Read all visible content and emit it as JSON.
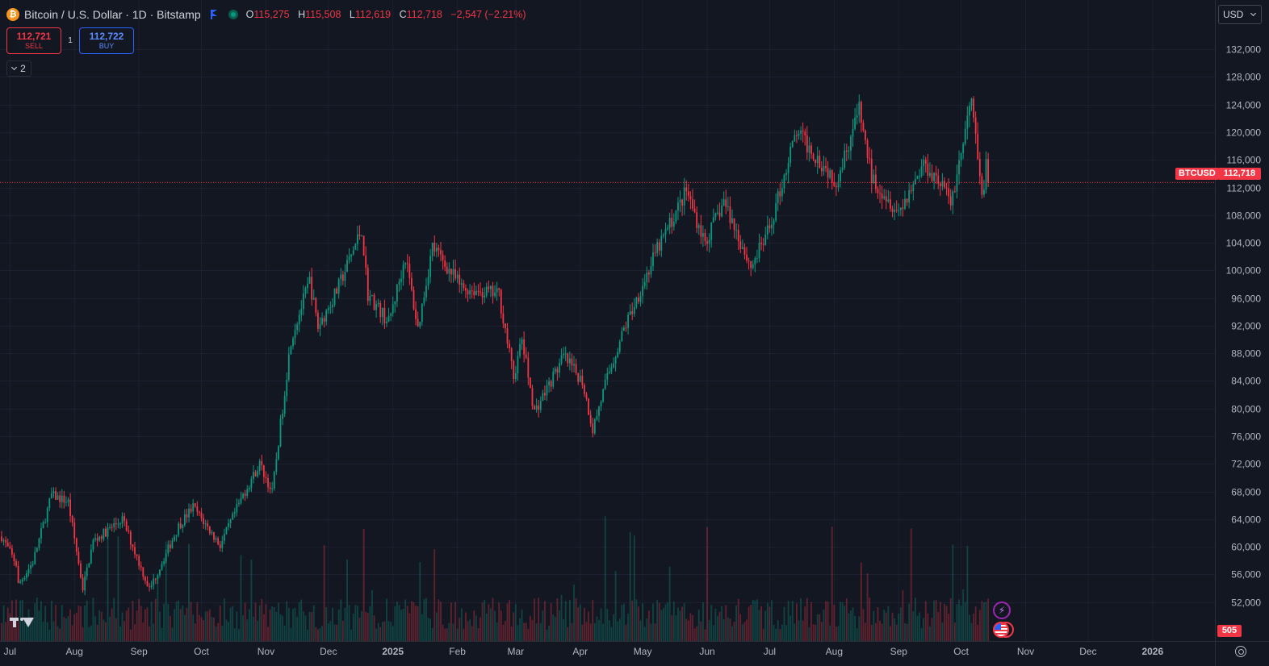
{
  "header": {
    "logo_glyph": "₿",
    "symbol_title": "Bitcoin / U.S. Dollar · 1D · Bitstamp",
    "ohlc": [
      {
        "key": "O",
        "value": "115,275"
      },
      {
        "key": "H",
        "value": "115,508"
      },
      {
        "key": "L",
        "value": "112,619"
      },
      {
        "key": "C",
        "value": "112,718"
      }
    ],
    "change": "−2,547 (−2.21%)"
  },
  "trade": {
    "sell_price": "112,721",
    "sell_label": "SELL",
    "spread": "1",
    "buy_price": "112,722",
    "buy_label": "BUY"
  },
  "indicators_toggle": {
    "count": "2"
  },
  "currency": {
    "label": "USD"
  },
  "tags": {
    "symbol": "BTCUSD",
    "last_price": "112,718",
    "volume": "505"
  },
  "colors": {
    "background": "#131722",
    "up": "#089981",
    "down": "#f23645",
    "grid": "#1c2030",
    "axis_text": "#b2b5be"
  },
  "chart_data": {
    "type": "candlestick",
    "interval": "1D",
    "y_axis": {
      "min": 48000,
      "max": 134000,
      "ticks": [
        52000,
        56000,
        60000,
        64000,
        68000,
        72000,
        76000,
        80000,
        84000,
        88000,
        92000,
        96000,
        100000,
        104000,
        108000,
        112000,
        116000,
        120000,
        124000,
        128000,
        132000
      ]
    },
    "x_axis": {
      "start_date": "2024-06-27",
      "end_date": "2026-01-29",
      "ticks": [
        {
          "label": "Jul",
          "date": "2024-07-01"
        },
        {
          "label": "Aug",
          "date": "2024-08-01"
        },
        {
          "label": "Sep",
          "date": "2024-09-01"
        },
        {
          "label": "Oct",
          "date": "2024-10-01"
        },
        {
          "label": "Nov",
          "date": "2024-11-01"
        },
        {
          "label": "Dec",
          "date": "2024-12-01"
        },
        {
          "label": "2025",
          "date": "2025-01-01"
        },
        {
          "label": "Feb",
          "date": "2025-02-01"
        },
        {
          "label": "Mar",
          "date": "2025-03-01"
        },
        {
          "label": "Apr",
          "date": "2025-04-01"
        },
        {
          "label": "May",
          "date": "2025-05-01"
        },
        {
          "label": "Jun",
          "date": "2025-06-01"
        },
        {
          "label": "Jul",
          "date": "2025-07-01"
        },
        {
          "label": "Aug",
          "date": "2025-08-01"
        },
        {
          "label": "Sep",
          "date": "2025-09-01"
        },
        {
          "label": "Oct",
          "date": "2025-10-01"
        },
        {
          "label": "Nov",
          "date": "2025-11-01"
        },
        {
          "label": "Dec",
          "date": "2025-12-01"
        },
        {
          "label": "2026",
          "date": "2026-01-01"
        }
      ]
    },
    "last_price": 112718,
    "close_path": [
      [
        "2024-06-27",
        61500
      ],
      [
        "2024-07-04",
        57500
      ],
      [
        "2024-07-05",
        54500
      ],
      [
        "2024-07-12",
        57800
      ],
      [
        "2024-07-21",
        67500
      ],
      [
        "2024-07-29",
        66500
      ],
      [
        "2024-08-05",
        54000
      ],
      [
        "2024-08-10",
        60800
      ],
      [
        "2024-08-24",
        64000
      ],
      [
        "2024-09-06",
        53800
      ],
      [
        "2024-09-20",
        63000
      ],
      [
        "2024-09-27",
        65800
      ],
      [
        "2024-10-10",
        60200
      ],
      [
        "2024-10-21",
        67500
      ],
      [
        "2024-10-29",
        72000
      ],
      [
        "2024-11-04",
        67800
      ],
      [
        "2024-11-13",
        90000
      ],
      [
        "2024-11-22",
        98500
      ],
      [
        "2024-11-26",
        91800
      ],
      [
        "2024-12-05",
        97000
      ],
      [
        "2024-12-17",
        106000
      ],
      [
        "2024-12-20",
        96500
      ],
      [
        "2024-12-30",
        92500
      ],
      [
        "2025-01-07",
        102000
      ],
      [
        "2025-01-13",
        91500
      ],
      [
        "2025-01-20",
        103500
      ],
      [
        "2025-01-27",
        100500
      ],
      [
        "2025-02-03",
        97500
      ],
      [
        "2025-02-21",
        96500
      ],
      [
        "2025-02-28",
        84500
      ],
      [
        "2025-03-04",
        90000
      ],
      [
        "2025-03-10",
        79500
      ],
      [
        "2025-03-24",
        87500
      ],
      [
        "2025-04-02",
        84000
      ],
      [
        "2025-04-07",
        77000
      ],
      [
        "2025-04-14",
        84500
      ],
      [
        "2025-04-22",
        91500
      ],
      [
        "2025-05-08",
        103000
      ],
      [
        "2025-05-22",
        111500
      ],
      [
        "2025-05-31",
        104000
      ],
      [
        "2025-06-09",
        110000
      ],
      [
        "2025-06-22",
        100500
      ],
      [
        "2025-07-01",
        106000
      ],
      [
        "2025-07-10",
        116000
      ],
      [
        "2025-07-14",
        120000
      ],
      [
        "2025-08-02",
        113000
      ],
      [
        "2025-08-13",
        123200
      ],
      [
        "2025-08-19",
        113500
      ],
      [
        "2025-09-01",
        108500
      ],
      [
        "2025-09-13",
        115500
      ],
      [
        "2025-09-22",
        112500
      ],
      [
        "2025-09-26",
        109500
      ],
      [
        "2025-10-06",
        124500
      ],
      [
        "2025-10-10",
        113000
      ],
      [
        "2025-10-11",
        110500
      ],
      [
        "2025-10-13",
        115300
      ],
      [
        "2025-10-14",
        112718
      ]
    ]
  }
}
